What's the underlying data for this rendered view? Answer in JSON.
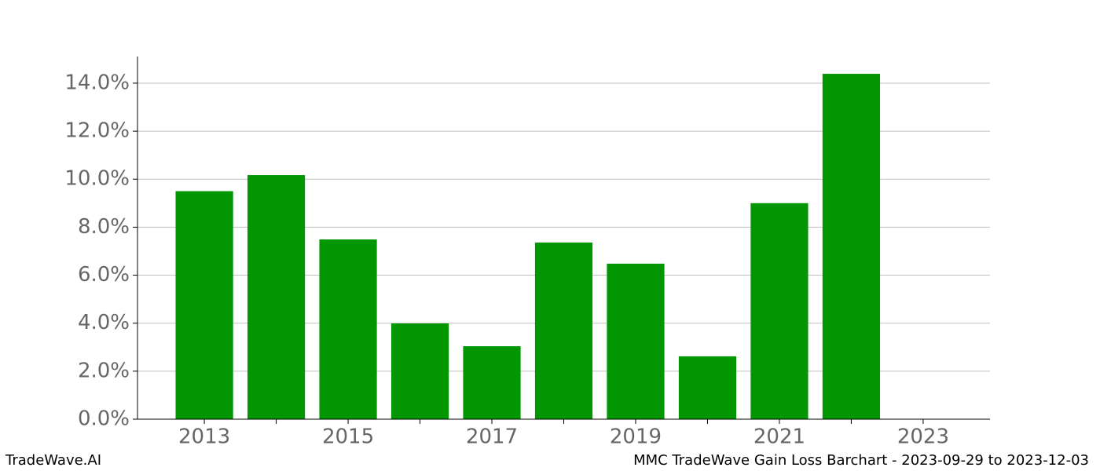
{
  "chart_data": {
    "type": "bar",
    "title": "MMC TradeWave Gain Loss Barchart - 2023-09-29 to 2023-12-03",
    "brand": "TradeWave.AI",
    "x": [
      2013,
      2014,
      2015,
      2016,
      2017,
      2018,
      2019,
      2020,
      2021,
      2022
    ],
    "values": [
      9.5,
      10.17,
      7.49,
      3.99,
      3.04,
      7.36,
      6.48,
      2.62,
      9.0,
      14.39
    ],
    "color": "#029702",
    "xlim": [
      2012.07,
      2023.93
    ],
    "xticks": [
      2013,
      2015,
      2017,
      2019,
      2021,
      2023
    ],
    "xminorticks": [
      2014,
      2016,
      2018,
      2020,
      2022
    ],
    "ylim": [
      0,
      15.11
    ],
    "yticks": [
      {
        "value": 0,
        "label": "0.0%"
      },
      {
        "value": 2,
        "label": "2.0%"
      },
      {
        "value": 4,
        "label": "4.0%"
      },
      {
        "value": 6,
        "label": "6.0%"
      },
      {
        "value": 8,
        "label": "8.0%"
      },
      {
        "value": 10,
        "label": "10.0%"
      },
      {
        "value": 12,
        "label": "12.0%"
      },
      {
        "value": 14,
        "label": "14.0%"
      }
    ],
    "grid": true
  }
}
